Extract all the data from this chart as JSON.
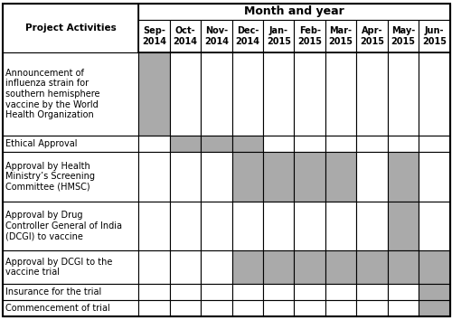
{
  "title": "Month and year",
  "col_header": "Project Activities",
  "months": [
    "Sep-\n2014",
    "Oct-\n2014",
    "Nov-\n2014",
    "Dec-\n2014",
    "Jan-\n2015",
    "Feb-\n2015",
    "Mar-\n2015",
    "Apr-\n2015",
    "May-\n2015",
    "Jun-\n2015"
  ],
  "activities": [
    "Announcement of\ninfluenza strain for\nsouthern hemisphere\nvaccine by the World\nHealth Organization",
    "Ethical Approval",
    "Approval by Health\nMinistry’s Screening\nCommittee (HMSC)",
    "Approval by Drug\nController General of India\n(DCGI) to vaccine",
    "Approval by DCGI to the\nvaccine trial",
    "Insurance for the trial",
    "Commencement of trial"
  ],
  "shaded": [
    [
      1,
      0,
      0,
      0,
      0,
      0,
      0,
      0,
      0,
      0
    ],
    [
      0,
      1,
      1,
      1,
      0,
      0,
      0,
      0,
      0,
      0
    ],
    [
      0,
      0,
      0,
      1,
      1,
      1,
      1,
      0,
      1,
      0
    ],
    [
      0,
      0,
      0,
      0,
      0,
      0,
      0,
      0,
      1,
      0
    ],
    [
      0,
      0,
      0,
      1,
      1,
      1,
      1,
      1,
      1,
      1
    ],
    [
      0,
      0,
      0,
      0,
      0,
      0,
      0,
      0,
      0,
      1
    ],
    [
      0,
      0,
      0,
      0,
      0,
      0,
      0,
      0,
      0,
      1
    ]
  ],
  "shade_color": "#aaaaaa",
  "border_color": "#000000",
  "bg_color": "#ffffff",
  "font_size_activity": 7,
  "font_size_month": 7,
  "font_size_title": 9,
  "row_heights_lines": [
    5,
    1,
    3,
    3,
    2,
    1,
    1
  ],
  "figsize": [
    5.0,
    3.54
  ],
  "dpi": 100
}
